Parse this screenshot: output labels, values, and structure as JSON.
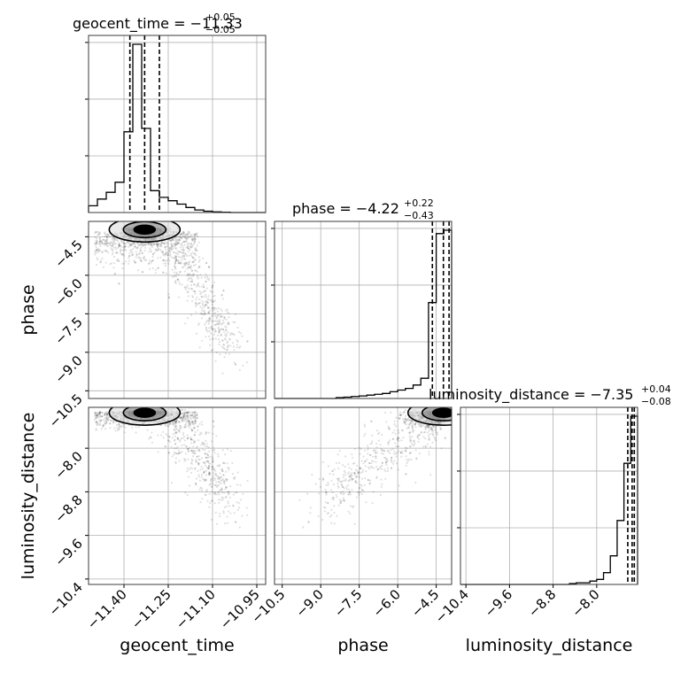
{
  "chart_data": {
    "type": "corner",
    "parameters": [
      {
        "name": "geocent_time",
        "label": "geocent_time",
        "title_main": "geocent_time = −11.33",
        "title_plus": "+0.05",
        "title_minus": "−0.05",
        "range": [
          -11.52,
          -10.92
        ],
        "ticks": [
          -11.4,
          -11.25,
          -11.1,
          -10.95
        ],
        "tick_labels": [
          "−11.40",
          "−11.25",
          "−11.10",
          "−10.95"
        ],
        "quantiles": [
          -11.38,
          -11.33,
          -11.28
        ],
        "hist": {
          "edges": [
            -11.52,
            -11.49,
            -11.46,
            -11.43,
            -11.4,
            -11.37,
            -11.34,
            -11.31,
            -11.28,
            -11.25,
            -11.22,
            -11.19,
            -11.16,
            -11.13,
            -11.1,
            -11.07,
            -11.04,
            -11.01,
            -10.98,
            -10.95,
            -10.92
          ],
          "counts": [
            0.04,
            0.08,
            0.12,
            0.18,
            0.48,
            1.0,
            0.5,
            0.13,
            0.09,
            0.07,
            0.05,
            0.03,
            0.015,
            0.008,
            0.004,
            0.002,
            0.0,
            0.0,
            0.0,
            0.0
          ]
        }
      },
      {
        "name": "phase",
        "label": "phase",
        "title_main": "phase = −4.22",
        "title_plus": "+0.22",
        "title_minus": "−0.43",
        "range": [
          -10.8,
          -3.9
        ],
        "ticks": [
          -10.5,
          -9.0,
          -7.5,
          -6.0,
          -4.5
        ],
        "tick_labels": [
          "−10.5",
          "−9.0",
          "−7.5",
          "−6.0",
          "−4.5"
        ],
        "quantiles": [
          -4.65,
          -4.22,
          -4.0
        ],
        "hist": {
          "edges": [
            -10.8,
            -10.5,
            -10.2,
            -9.9,
            -9.6,
            -9.3,
            -9.0,
            -8.7,
            -8.4,
            -8.1,
            -7.8,
            -7.5,
            -7.2,
            -6.9,
            -6.6,
            -6.3,
            -6.0,
            -5.7,
            -5.4,
            -5.1,
            -4.8,
            -4.5,
            -4.2,
            -3.9
          ],
          "counts": [
            0.0,
            0.0,
            0.0,
            0.0,
            0.0,
            0.0,
            0.0,
            0.0,
            0.005,
            0.008,
            0.012,
            0.015,
            0.02,
            0.025,
            0.03,
            0.04,
            0.05,
            0.06,
            0.08,
            0.12,
            0.57,
            0.98,
            1.0
          ]
        }
      },
      {
        "name": "luminosity_distance",
        "label": "luminosity_distance",
        "title_main": "luminosity_distance = −7.35",
        "title_plus": "+0.04",
        "title_minus": "−0.08",
        "range": [
          -10.5,
          -7.25
        ],
        "ticks": [
          -10.4,
          -9.6,
          -8.8,
          -8.0
        ],
        "tick_labels": [
          "−10.4",
          "−9.6",
          "−8.8",
          "−8.0"
        ],
        "quantiles": [
          -7.43,
          -7.35,
          -7.31
        ],
        "hist": {
          "edges": [
            -10.5,
            -10.375,
            -10.25,
            -10.125,
            -10.0,
            -9.875,
            -9.75,
            -9.625,
            -9.5,
            -9.375,
            -9.25,
            -9.125,
            -9.0,
            -8.875,
            -8.75,
            -8.625,
            -8.5,
            -8.375,
            -8.25,
            -8.125,
            -8.0,
            -7.875,
            -7.75,
            -7.625,
            -7.5,
            -7.375,
            -7.25
          ],
          "counts": [
            0.0,
            0.0,
            0.0,
            0.0,
            0.0,
            0.0,
            0.0,
            0.0,
            0.0,
            0.0,
            0.0,
            0.0,
            0.0,
            0.0,
            0.0,
            0.0,
            0.005,
            0.01,
            0.01,
            0.02,
            0.03,
            0.07,
            0.17,
            0.38,
            0.72,
            1.0
          ]
        }
      }
    ],
    "scatter": {
      "phase_vs_geocent_time": {
        "color": "#000000"
      },
      "luminosity_distance_vs_geocent_time": {
        "color": "#000000"
      },
      "luminosity_distance_vs_phase": {
        "color": "#000000"
      }
    },
    "grid": true,
    "line_color": "#000000"
  }
}
